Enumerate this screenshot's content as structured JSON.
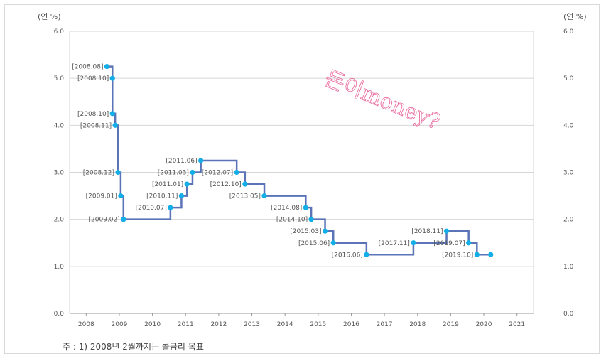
{
  "chart_data": {
    "type": "line",
    "step": true,
    "units_left": "(연 %)",
    "units_right": "(연 %)",
    "ylim": [
      0,
      6
    ],
    "yticks": [
      "0.0",
      "1.0",
      "2.0",
      "3.0",
      "4.0",
      "5.0",
      "6.0"
    ],
    "xlim": [
      2007.5,
      2021.5
    ],
    "xticks": [
      "2008",
      "2009",
      "2010",
      "2011",
      "2012",
      "2013",
      "2014",
      "2015",
      "2016",
      "2017",
      "2018",
      "2019",
      "2020",
      "2021"
    ],
    "grid": true,
    "line_color": "#5b74b8",
    "marker_color": "#12aee8",
    "series": [
      {
        "points": [
          {
            "x": "2008.08",
            "y": 5.25,
            "label": "[2008.08]"
          },
          {
            "x": "2008.10",
            "y": 5.0,
            "label": "[2008.10]"
          },
          {
            "x": "2008.10",
            "y": 4.25,
            "label": "[2008.10]"
          },
          {
            "x": "2008.11",
            "y": 4.0,
            "label": "[2008.11]"
          },
          {
            "x": "2008.12",
            "y": 3.0,
            "label": "[2008.12]"
          },
          {
            "x": "2009.01",
            "y": 2.5,
            "label": "[2009.01]"
          },
          {
            "x": "2009.02",
            "y": 2.0,
            "label": "[2009.02]"
          },
          {
            "x": "2010.07",
            "y": 2.25,
            "label": "[2010.07]"
          },
          {
            "x": "2010.11",
            "y": 2.5,
            "label": "[2010.11]"
          },
          {
            "x": "2011.01",
            "y": 2.75,
            "label": "[2011.01]"
          },
          {
            "x": "2011.03",
            "y": 3.0,
            "label": "[2011.03]"
          },
          {
            "x": "2011.06",
            "y": 3.25,
            "label": "[2011.06]"
          },
          {
            "x": "2012.07",
            "y": 3.0,
            "label": "[2012.07]"
          },
          {
            "x": "2012.10",
            "y": 2.75,
            "label": "[2012.10]"
          },
          {
            "x": "2013.05",
            "y": 2.5,
            "label": "[2013.05]"
          },
          {
            "x": "2014.08",
            "y": 2.25,
            "label": "[2014.08]"
          },
          {
            "x": "2014.10",
            "y": 2.0,
            "label": "[2014.10]"
          },
          {
            "x": "2015.03",
            "y": 1.75,
            "label": "[2015.03]"
          },
          {
            "x": "2015.06",
            "y": 1.5,
            "label": "[2015.06]"
          },
          {
            "x": "2016.06",
            "y": 1.25,
            "label": "[2016.06]"
          },
          {
            "x": "2017.11",
            "y": 1.5,
            "label": "[2017.11]"
          },
          {
            "x": "2018.11",
            "y": 1.75,
            "label": "[2018.11]"
          },
          {
            "x": "2019.07",
            "y": 1.5,
            "label": "[2019.07]"
          },
          {
            "x": "2019.10",
            "y": 1.25,
            "label": "[2019.10]"
          },
          {
            "x": "2020.03",
            "y": 1.25,
            "label": ""
          }
        ]
      }
    ]
  },
  "note": "주 : 1) 2008년 2월까지는 콜금리 목표",
  "watermark": "돈이money?"
}
